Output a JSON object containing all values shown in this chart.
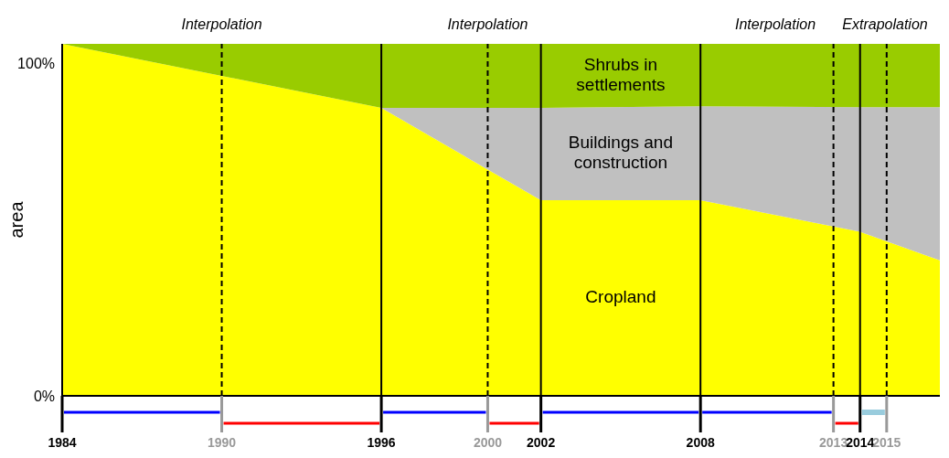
{
  "chart_data": {
    "type": "area",
    "stacked": true,
    "ylabel": "area",
    "x": [
      1984,
      1996,
      2002,
      2008,
      2014,
      2017
    ],
    "series": [
      {
        "name": "Cropland",
        "color": "#ffff00",
        "values": [
          106,
          86.7,
          58.9,
          58.9,
          49.4,
          40.8
        ]
      },
      {
        "name": "Buildings and construction",
        "color": "#c0c0c0",
        "values": [
          0,
          0,
          27.8,
          28.3,
          37.5,
          46.1
        ]
      },
      {
        "name": "Shrubs in settlements",
        "color": "#99cc00",
        "values": [
          0,
          19.3,
          19.3,
          18.8,
          19.1,
          19.1
        ]
      }
    ],
    "xlim": [
      1984,
      2017
    ],
    "xticks": [
      1984,
      1990,
      1996,
      2000,
      2002,
      2008,
      2013,
      2014,
      2015
    ],
    "ylim": [
      0,
      106
    ],
    "yticks": [
      {
        "value": 0,
        "label": "0%"
      },
      {
        "value": 100,
        "label": "100%"
      }
    ],
    "ref_lines": [
      {
        "axis": "x",
        "value": 1990,
        "line_style": "dashed"
      },
      {
        "axis": "x",
        "value": 1996,
        "line_style": "solid"
      },
      {
        "axis": "x",
        "value": 2000,
        "line_style": "dashed"
      },
      {
        "axis": "x",
        "value": 2002,
        "line_style": "solid"
      },
      {
        "axis": "x",
        "value": 2008,
        "line_style": "solid"
      },
      {
        "axis": "x",
        "value": 2013,
        "line_style": "dashed"
      },
      {
        "axis": "x",
        "value": 2014,
        "line_style": "solid"
      },
      {
        "axis": "x",
        "value": 2015,
        "line_style": "dashed"
      }
    ],
    "annotations": [
      "Interpolation",
      "Interpolation",
      "Interpolation",
      "Extrapolation"
    ],
    "grid": false,
    "legend": false
  }
}
